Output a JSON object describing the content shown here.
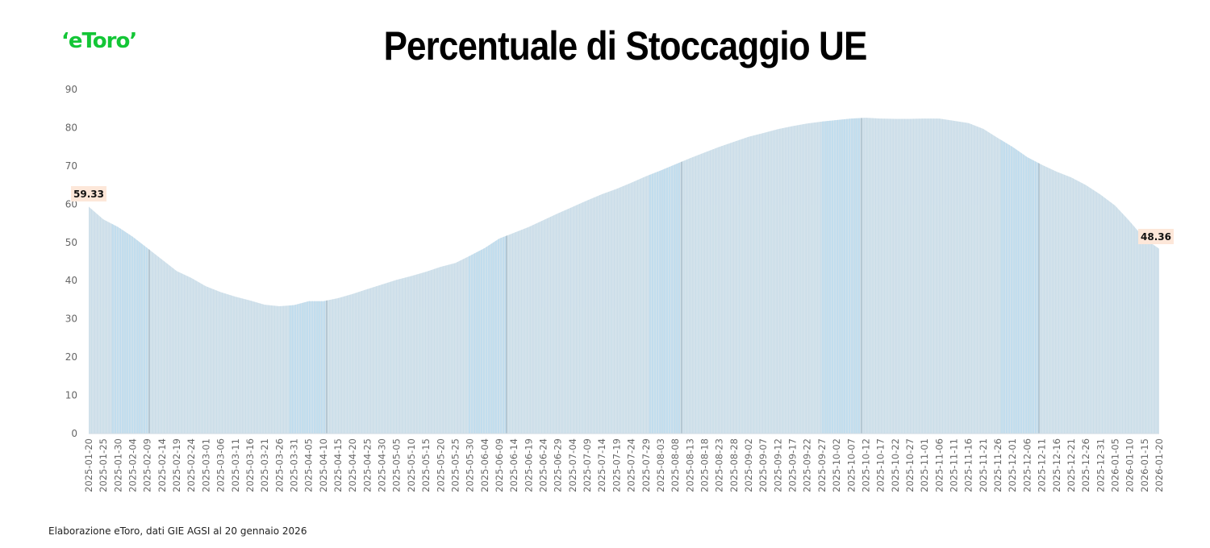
{
  "header": {
    "logo_text": "‘eToro’",
    "title": "Percentuale di Stoccaggio UE"
  },
  "footer": {
    "source_note": "Elaborazione eToro, dati GIE AGSI al 20 gennaio 2026"
  },
  "colors": {
    "brand_green": "#13c636",
    "fill": "#d3e2eb",
    "bar_highlight": "#bcdcf0",
    "data_label_bg": "#fde7d9",
    "axis_text": "#666666"
  },
  "chart_data": {
    "type": "area",
    "title": "Percentuale di Stoccaggio UE",
    "xlabel": "",
    "ylabel": "",
    "ylim": [
      0,
      90
    ],
    "yticks": [
      0,
      10,
      20,
      30,
      40,
      50,
      60,
      70,
      80,
      90
    ],
    "grid": false,
    "legend": "none",
    "annotations": [
      {
        "x": "2025-01-20",
        "label": "59.33"
      },
      {
        "x": "2026-01-20",
        "label": "48.36"
      }
    ],
    "x": [
      "2025-01-20",
      "2025-01-25",
      "2025-01-30",
      "2025-02-04",
      "2025-02-09",
      "2025-02-14",
      "2025-02-19",
      "2025-02-24",
      "2025-03-01",
      "2025-03-06",
      "2025-03-11",
      "2025-03-16",
      "2025-03-21",
      "2025-03-26",
      "2025-03-31",
      "2025-04-05",
      "2025-04-10",
      "2025-04-15",
      "2025-04-20",
      "2025-04-25",
      "2025-04-30",
      "2025-05-05",
      "2025-05-10",
      "2025-05-15",
      "2025-05-20",
      "2025-05-25",
      "2025-05-30",
      "2025-06-04",
      "2025-06-09",
      "2025-06-14",
      "2025-06-19",
      "2025-06-24",
      "2025-06-29",
      "2025-07-04",
      "2025-07-09",
      "2025-07-14",
      "2025-07-19",
      "2025-07-24",
      "2025-07-29",
      "2025-08-03",
      "2025-08-08",
      "2025-08-13",
      "2025-08-18",
      "2025-08-23",
      "2025-08-28",
      "2025-09-02",
      "2025-09-07",
      "2025-09-12",
      "2025-09-17",
      "2025-09-22",
      "2025-09-27",
      "2025-10-02",
      "2025-10-07",
      "2025-10-12",
      "2025-10-17",
      "2025-10-22",
      "2025-10-27",
      "2025-11-01",
      "2025-11-06",
      "2025-11-11",
      "2025-11-16",
      "2025-11-21",
      "2025-11-26",
      "2025-12-01",
      "2025-12-06",
      "2025-12-11",
      "2025-12-16",
      "2025-12-21",
      "2025-12-26",
      "2025-12-31",
      "2026-01-05",
      "2026-01-10",
      "2026-01-15",
      "2026-01-20"
    ],
    "series": [
      {
        "name": "Percentuale di Stoccaggio UE",
        "values": [
          59.33,
          56.0,
          54.0,
          51.5,
          48.5,
          45.5,
          42.5,
          40.7,
          38.5,
          37.0,
          35.8,
          34.8,
          33.7,
          33.3,
          33.6,
          34.6,
          34.6,
          35.4,
          36.5,
          37.8,
          39.0,
          40.2,
          41.2,
          42.3,
          43.6,
          44.6,
          46.5,
          48.5,
          51.0,
          52.5,
          54.0,
          55.8,
          57.6,
          59.3,
          61.0,
          62.6,
          64.0,
          65.6,
          67.3,
          68.8,
          70.4,
          72.0,
          73.5,
          75.0,
          76.3,
          77.6,
          78.6,
          79.6,
          80.4,
          81.1,
          81.6,
          82.0,
          82.4,
          82.6,
          82.4,
          82.3,
          82.3,
          82.4,
          82.4,
          81.8,
          81.2,
          79.7,
          77.3,
          75.0,
          72.3,
          70.3,
          68.5,
          67.0,
          65.0,
          62.5,
          59.6,
          55.5,
          51.0,
          48.36
        ]
      }
    ]
  }
}
